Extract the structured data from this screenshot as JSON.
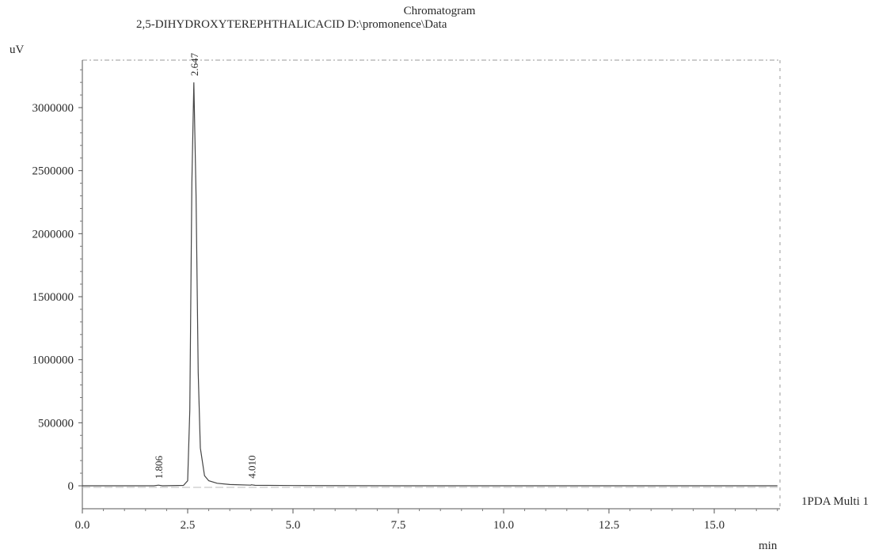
{
  "chart_data": {
    "type": "line",
    "title": "Chromatogram",
    "subtitle": "2,5-DIHYDROXYTEREPHTHALICACID D:\\promonence\\Data",
    "ylabel": "uV",
    "xlabel": "min",
    "xlim": [
      0.0,
      16.5
    ],
    "ylim": [
      -150000,
      3400000
    ],
    "x_ticks": [
      "0.0",
      "2.5",
      "5.0",
      "7.5",
      "10.0",
      "12.5",
      "15.0"
    ],
    "y_ticks": [
      "0",
      "500000",
      "1000000",
      "1500000",
      "2000000",
      "2500000",
      "3000000"
    ],
    "legend": "1PDA Multi 1",
    "grid": false,
    "series": [
      {
        "x": [
          0.0,
          1.7,
          1.806,
          1.9,
          2.4,
          2.5,
          2.55,
          2.6,
          2.647,
          2.7,
          2.75,
          2.8,
          2.9,
          3.0,
          3.2,
          3.5,
          4.0,
          4.01,
          4.1,
          5.0,
          7.5,
          10.0,
          12.5,
          15.0,
          16.5
        ],
        "y": [
          0,
          0,
          5000,
          0,
          3000,
          40000,
          600000,
          2400000,
          3200000,
          2300000,
          900000,
          300000,
          80000,
          40000,
          20000,
          10000,
          5000,
          8000,
          4000,
          2000,
          0,
          0,
          0,
          0,
          0
        ]
      }
    ],
    "peaks": [
      {
        "rt": 1.806,
        "label": "1.806"
      },
      {
        "rt": 2.647,
        "label": "2.647"
      },
      {
        "rt": 4.01,
        "label": "4.010"
      }
    ]
  }
}
